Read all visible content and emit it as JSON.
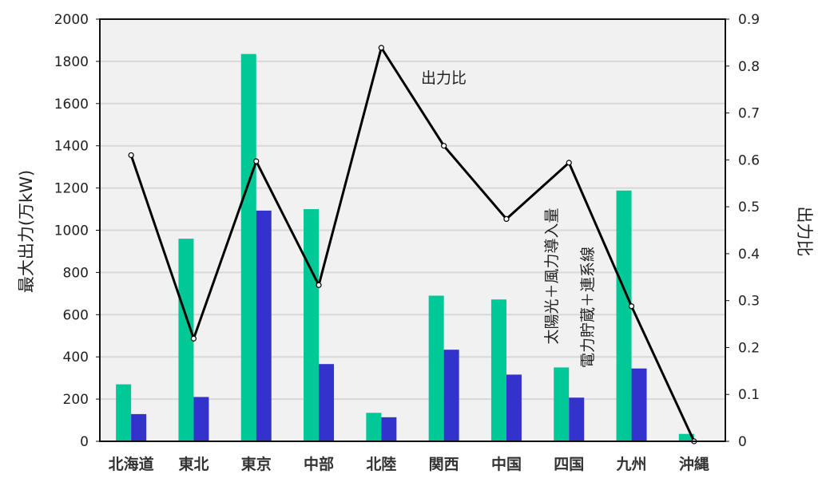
{
  "chart_data": {
    "type": "bar",
    "title": "",
    "xlabel": "",
    "ylabel": "最大出力(万kW)",
    "ylabel_right": "出力比",
    "ylim": [
      0,
      2000
    ],
    "ylim_right": [
      0,
      0.9
    ],
    "yticks": [
      "0",
      "200",
      "400",
      "600",
      "800",
      "1000",
      "1200",
      "1400",
      "1600",
      "1800",
      "2000"
    ],
    "yticks_right": [
      "0",
      "0.1",
      "0.2",
      "0.3",
      "0.4",
      "0.5",
      "0.6",
      "0.7",
      "0.8",
      "0.9"
    ],
    "grid": true,
    "categories": [
      "北海道",
      "東北",
      "東京",
      "中部",
      "北陸",
      "関西",
      "中国",
      "四国",
      "九州",
      "沖縄"
    ],
    "series": [
      {
        "name": "太陽光＋風力導入量",
        "type": "bar",
        "axis": "left",
        "color": "#00C896",
        "values": [
          270,
          960,
          1835,
          1100,
          135,
          690,
          672,
          350,
          1188,
          35
        ]
      },
      {
        "name": "電力貯蔵＋連系線",
        "type": "bar",
        "axis": "left",
        "color": "#3333CC",
        "values": [
          129,
          210,
          1093,
          366,
          114,
          434,
          316,
          207,
          345,
          0
        ]
      },
      {
        "name": "出力比",
        "type": "line",
        "axis": "right",
        "color": "#000000",
        "values": [
          0.61,
          0.219,
          0.597,
          0.333,
          0.839,
          0.63,
          0.474,
          0.594,
          0.288,
          0.0
        ]
      }
    ],
    "annotations": [
      "出力比",
      "太陽光＋風力導入量",
      "電力貯蔵＋連系線"
    ]
  }
}
